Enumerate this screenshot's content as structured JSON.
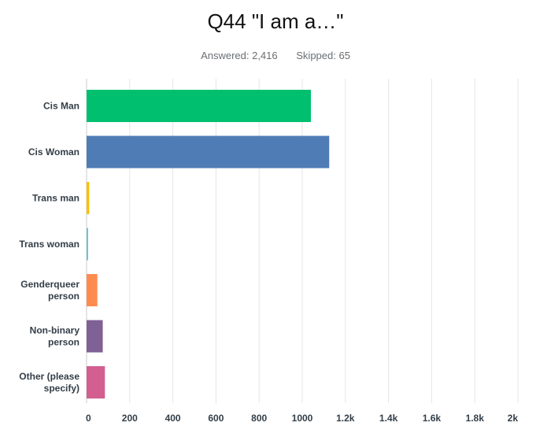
{
  "header": {
    "title": "Q44 \"I am a…\"",
    "answered": "Answered: 2,416",
    "skipped": "Skipped: 65"
  },
  "chart_data": {
    "type": "bar",
    "orientation": "horizontal",
    "categories": [
      [
        "Cis Man"
      ],
      [
        "Cis Woman"
      ],
      [
        "Trans man"
      ],
      [
        "Trans woman"
      ],
      [
        "Genderqueer",
        "person"
      ],
      [
        "Non-binary",
        "person"
      ],
      [
        "Other (please",
        "specify)"
      ]
    ],
    "values": [
      1040,
      1125,
      12,
      5,
      50,
      75,
      85
    ],
    "colors": [
      "#00bf6f",
      "#507cb6",
      "#f9be00",
      "#6bc8cd",
      "#ff8b4f",
      "#7f6195",
      "#d25f90"
    ],
    "xlim": [
      0,
      2000
    ],
    "ticks": [
      0,
      200,
      400,
      600,
      800,
      1000,
      1200,
      1400,
      1600,
      1800,
      2000
    ],
    "tick_labels": [
      "0",
      "200",
      "400",
      "600",
      "800",
      "1000",
      "1.2k",
      "1.4k",
      "1.6k",
      "1.8k",
      "2k"
    ],
    "grid": true,
    "title": "Q44 \"I am a…\"",
    "xlabel": "",
    "ylabel": ""
  }
}
